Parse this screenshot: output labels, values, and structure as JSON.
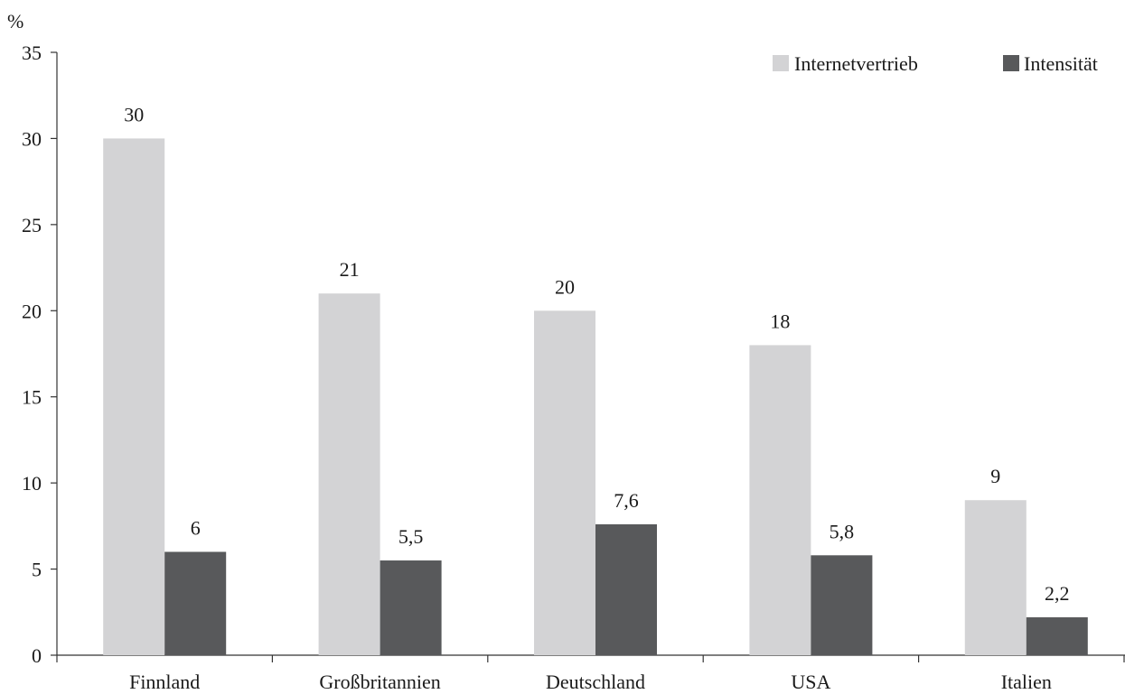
{
  "chart_data": {
    "type": "bar",
    "ylabel": "%",
    "ylim": [
      0,
      35
    ],
    "yticks": [
      0,
      5,
      10,
      15,
      20,
      25,
      30,
      35
    ],
    "grid": false,
    "legend_position": "top-right",
    "categories": [
      "Finnland",
      "Großbritannien",
      "Deutschland",
      "USA",
      "Italien"
    ],
    "series": [
      {
        "name": "Internetvertrieb",
        "color": "#d3d3d5",
        "values": [
          30,
          21,
          20,
          18,
          9
        ],
        "labels": [
          "30",
          "21",
          "20",
          "18",
          "9"
        ]
      },
      {
        "name": "Intensität",
        "color": "#58595b",
        "values": [
          6,
          5.5,
          7.6,
          5.8,
          2.2
        ],
        "labels": [
          "6",
          "5,5",
          "7,6",
          "5,8",
          "2,2"
        ]
      }
    ]
  }
}
